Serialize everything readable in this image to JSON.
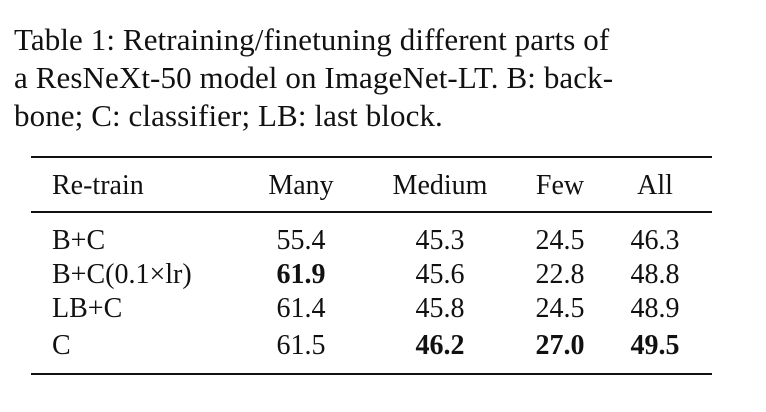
{
  "caption": {
    "line1": "Table 1:  Retraining/finetuning different parts of",
    "line2": "a ResNeXt-50 model on ImageNet-LT. B: back-",
    "line3": "bone; C: classifier; LB: last block."
  },
  "table": {
    "headers": [
      "Re-train",
      "Many",
      "Medium",
      "Few",
      "All"
    ],
    "rows": [
      {
        "label": "B+C",
        "many": "55.4",
        "medium": "45.3",
        "few": "24.5",
        "all": "46.3"
      },
      {
        "label": "B+C(0.1×lr)",
        "many": "61.9",
        "medium": "45.6",
        "few": "22.8",
        "all": "48.8"
      },
      {
        "label": "LB+C",
        "many": "61.4",
        "medium": "45.8",
        "few": "24.5",
        "all": "48.9"
      },
      {
        "label": "C",
        "many": "61.5",
        "medium": "46.2",
        "few": "27.0",
        "all": "49.5"
      }
    ]
  }
}
